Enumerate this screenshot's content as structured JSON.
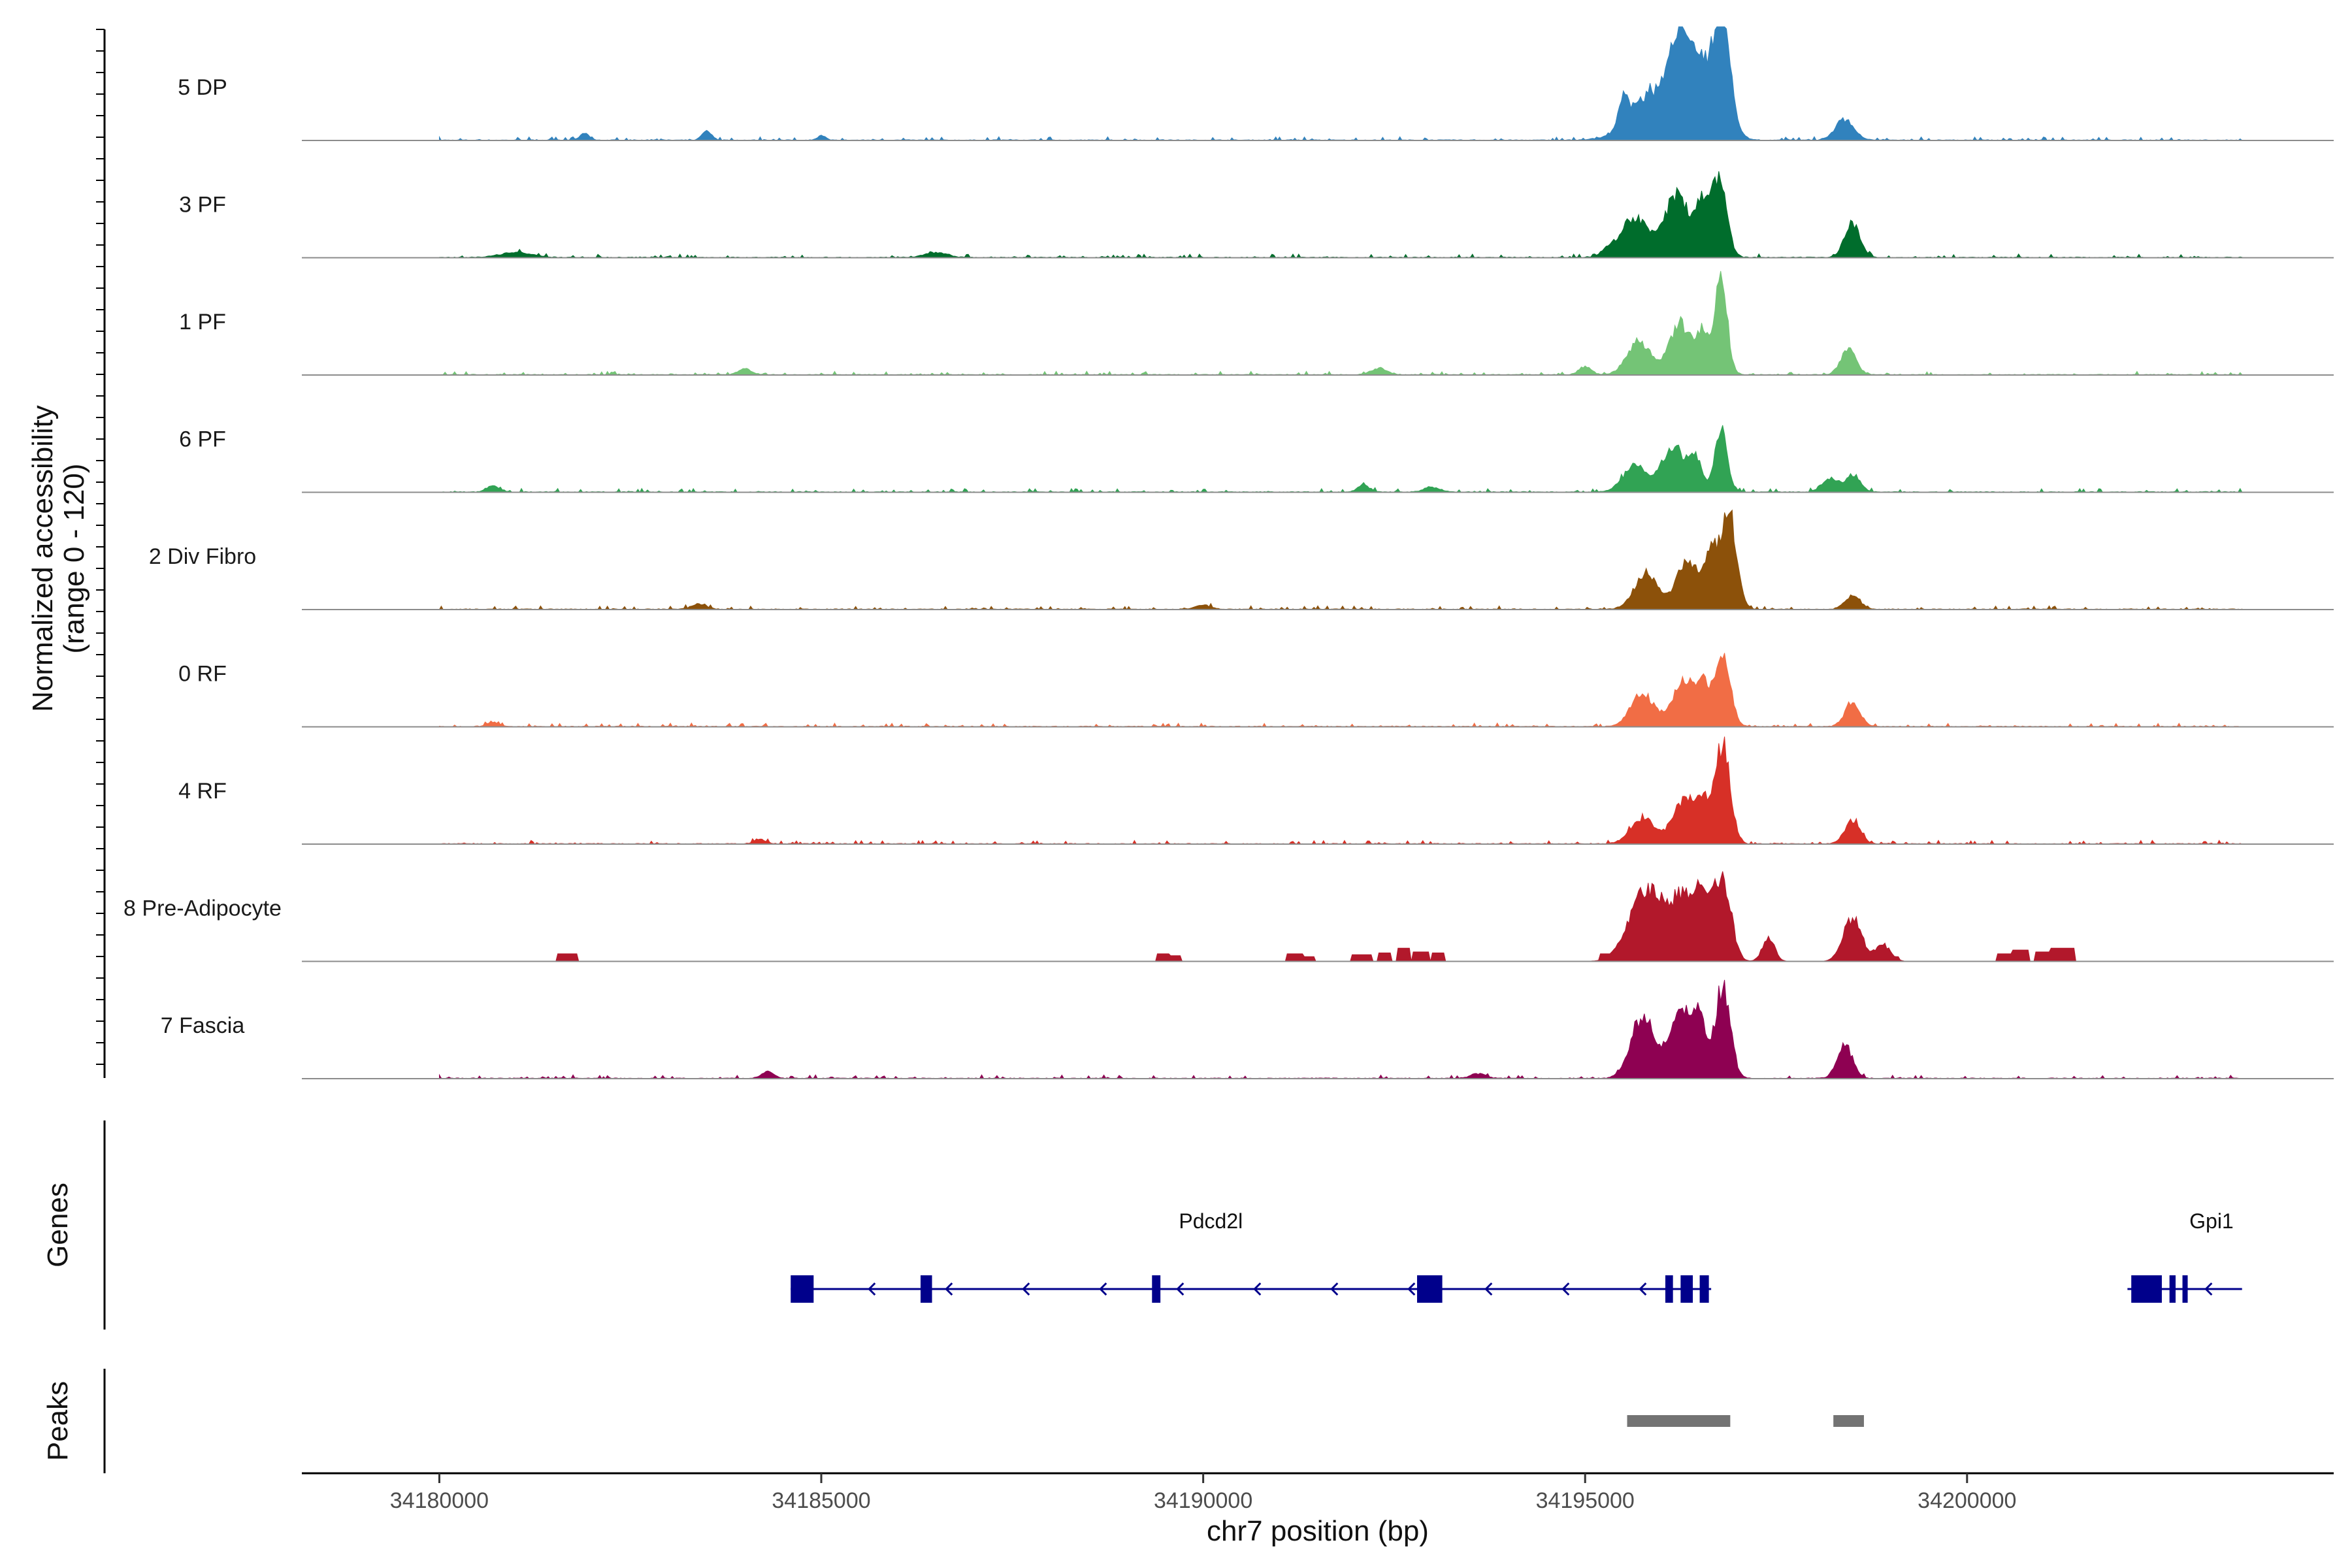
{
  "chart_data": {
    "type": "area",
    "title": "",
    "xlabel": "chr7 position (bp)",
    "ylabel": "Normalized accessibility (range 0 - 120)",
    "ylabel_lines": [
      "Normalized accessibility",
      "(range 0 - 120)"
    ],
    "ylim": [
      0,
      120
    ],
    "xlim": [
      34178200,
      34204800
    ],
    "xticks": [
      34180000,
      34185000,
      34190000,
      34195000,
      34200000
    ],
    "xtick_labels": [
      "34180000",
      "34185000",
      "34190000",
      "34195000",
      "34200000"
    ],
    "series": [
      {
        "name": "5 DP",
        "color": "#3182bd",
        "peaks": [
          [
            34195500,
            60,
            35
          ],
          [
            34195900,
            300,
            55
          ],
          [
            34196250,
            150,
            95
          ],
          [
            34196600,
            200,
            78
          ],
          [
            34196800,
            100,
            108
          ],
          [
            34198400,
            120,
            25
          ],
          [
            34183500,
            60,
            12
          ],
          [
            34181900,
            60,
            8
          ],
          [
            34185000,
            50,
            6
          ]
        ]
      },
      {
        "name": "3 PF",
        "color": "#006d2c",
        "peaks": [
          [
            34195650,
            180,
            48
          ],
          [
            34196200,
            160,
            75
          ],
          [
            34196520,
            80,
            58
          ],
          [
            34196750,
            100,
            100
          ],
          [
            34198500,
            100,
            42
          ],
          [
            34181000,
            200,
            6
          ],
          [
            34186500,
            150,
            6
          ],
          [
            34195300,
            80,
            8
          ]
        ]
      },
      {
        "name": "1 PF",
        "color": "#74c476",
        "peaks": [
          [
            34195700,
            150,
            40
          ],
          [
            34196250,
            150,
            60
          ],
          [
            34196550,
            80,
            45
          ],
          [
            34196780,
            80,
            118
          ],
          [
            34198450,
            100,
            30
          ],
          [
            34184000,
            80,
            8
          ],
          [
            34192300,
            100,
            8
          ],
          [
            34195000,
            80,
            10
          ]
        ]
      },
      {
        "name": "6 PF",
        "color": "#31a354",
        "peaks": [
          [
            34195650,
            150,
            32
          ],
          [
            34196150,
            150,
            55
          ],
          [
            34196450,
            80,
            40
          ],
          [
            34196780,
            80,
            80
          ],
          [
            34198200,
            100,
            16
          ],
          [
            34198500,
            100,
            20
          ],
          [
            34180700,
            80,
            8
          ],
          [
            34192100,
            80,
            8
          ],
          [
            34193000,
            100,
            6
          ]
        ]
      },
      {
        "name": "2 Div Fibro",
        "color": "#8c510a",
        "peaks": [
          [
            34195800,
            150,
            45
          ],
          [
            34196350,
            150,
            58
          ],
          [
            34196650,
            80,
            65
          ],
          [
            34196880,
            100,
            118
          ],
          [
            34198500,
            100,
            16
          ],
          [
            34183400,
            100,
            6
          ],
          [
            34190000,
            100,
            5
          ]
        ]
      },
      {
        "name": "0 RF",
        "color": "#f16d45",
        "peaks": [
          [
            34195750,
            150,
            40
          ],
          [
            34196300,
            150,
            58
          ],
          [
            34196550,
            80,
            40
          ],
          [
            34196800,
            100,
            90
          ],
          [
            34198500,
            100,
            28
          ],
          [
            34180700,
            80,
            5
          ]
        ]
      },
      {
        "name": "4 RF",
        "color": "#d73027",
        "peaks": [
          [
            34195750,
            150,
            32
          ],
          [
            34196300,
            150,
            55
          ],
          [
            34196550,
            80,
            40
          ],
          [
            34196800,
            100,
            118
          ],
          [
            34198500,
            100,
            28
          ],
          [
            34184200,
            80,
            5
          ]
        ]
      },
      {
        "name": "8 Pre-Adipocyte",
        "color": "#b2182b",
        "blocks": [
          [
            34181550,
            34181800,
            8
          ],
          [
            34189400,
            34189550,
            8
          ],
          [
            34189550,
            34189700,
            6
          ],
          [
            34191100,
            34191300,
            8
          ],
          [
            34191300,
            34191450,
            5
          ],
          [
            34191950,
            34192200,
            7
          ],
          [
            34192300,
            34192450,
            9
          ],
          [
            34192550,
            34192700,
            14
          ],
          [
            34192750,
            34192950,
            10
          ],
          [
            34193000,
            34193150,
            9
          ],
          [
            34195200,
            34195400,
            8
          ],
          [
            34198900,
            34199100,
            5
          ],
          [
            34200400,
            34200600,
            8
          ],
          [
            34200600,
            34200800,
            12
          ],
          [
            34200900,
            34201100,
            10
          ],
          [
            34201100,
            34201400,
            14
          ]
        ],
        "peaks": [
          [
            34195800,
            220,
            85
          ],
          [
            34196300,
            180,
            75
          ],
          [
            34196550,
            100,
            55
          ],
          [
            34196800,
            110,
            100
          ],
          [
            34197400,
            80,
            28
          ],
          [
            34198500,
            120,
            52
          ],
          [
            34198900,
            100,
            20
          ]
        ]
      },
      {
        "name": "7 Fascia",
        "color": "#8e0152",
        "peaks": [
          [
            34195750,
            150,
            75
          ],
          [
            34196250,
            150,
            85
          ],
          [
            34196500,
            80,
            60
          ],
          [
            34196800,
            100,
            110
          ],
          [
            34198400,
            100,
            40
          ],
          [
            34184300,
            80,
            8
          ],
          [
            34193600,
            100,
            6
          ]
        ]
      }
    ],
    "genes_track": {
      "title": "Genes",
      "color": "#00008b",
      "genes": [
        {
          "name": "Pdcd2l",
          "start": 34184600,
          "end": 34196650,
          "strand": "-",
          "exons": [
            [
              34184600,
              34184900
            ],
            [
              34186300,
              34186450
            ],
            [
              34189330,
              34189440
            ],
            [
              34192800,
              34193130
            ],
            [
              34196050,
              34196150
            ],
            [
              34196250,
              34196410
            ],
            [
              34196500,
              34196620
            ]
          ]
        },
        {
          "name": "Gpi1",
          "start": 34202100,
          "end": 34203600,
          "strand": "-",
          "exons": [
            [
              34202150,
              34202550
            ],
            [
              34202650,
              34202730
            ],
            [
              34202820,
              34202880
            ]
          ]
        }
      ]
    },
    "peaks_track": {
      "title": "Peaks",
      "color": "#737373",
      "regions": [
        [
          34195550,
          34196900
        ],
        [
          34198250,
          34198650
        ]
      ]
    }
  }
}
